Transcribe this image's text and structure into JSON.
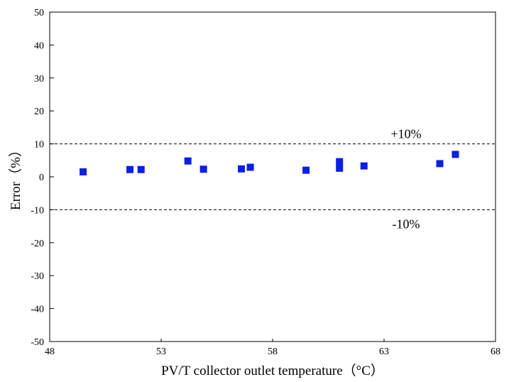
{
  "chart_data": {
    "type": "scatter",
    "xlabel": "PV/T collector outlet temperature（°C）",
    "ylabel": "Error（%）",
    "xlim": [
      48,
      68
    ],
    "ylim": [
      -50,
      50
    ],
    "x_ticks": [
      48,
      53,
      58,
      63,
      68
    ],
    "y_ticks": [
      50,
      40,
      30,
      20,
      10,
      0,
      -10,
      -20,
      -30,
      -40,
      -50
    ],
    "grid": false,
    "marker_color": "#0b1fe6",
    "reference_lines": [
      {
        "y": 10,
        "label": "+10%",
        "style": "dashed"
      },
      {
        "y": -10,
        "label": "-10%",
        "style": "dashed"
      }
    ],
    "points": [
      {
        "x": 49.5,
        "y": 1.5
      },
      {
        "x": 51.6,
        "y": 2.2
      },
      {
        "x": 52.1,
        "y": 2.2
      },
      {
        "x": 54.2,
        "y": 4.8
      },
      {
        "x": 54.9,
        "y": 2.3
      },
      {
        "x": 56.6,
        "y": 2.4
      },
      {
        "x": 57.0,
        "y": 2.9
      },
      {
        "x": 59.5,
        "y": 2.0
      },
      {
        "x": 61.0,
        "y": 2.6
      },
      {
        "x": 61.0,
        "y": 4.6
      },
      {
        "x": 62.1,
        "y": 3.3
      },
      {
        "x": 65.5,
        "y": 4.0
      },
      {
        "x": 66.2,
        "y": 6.8
      }
    ]
  }
}
